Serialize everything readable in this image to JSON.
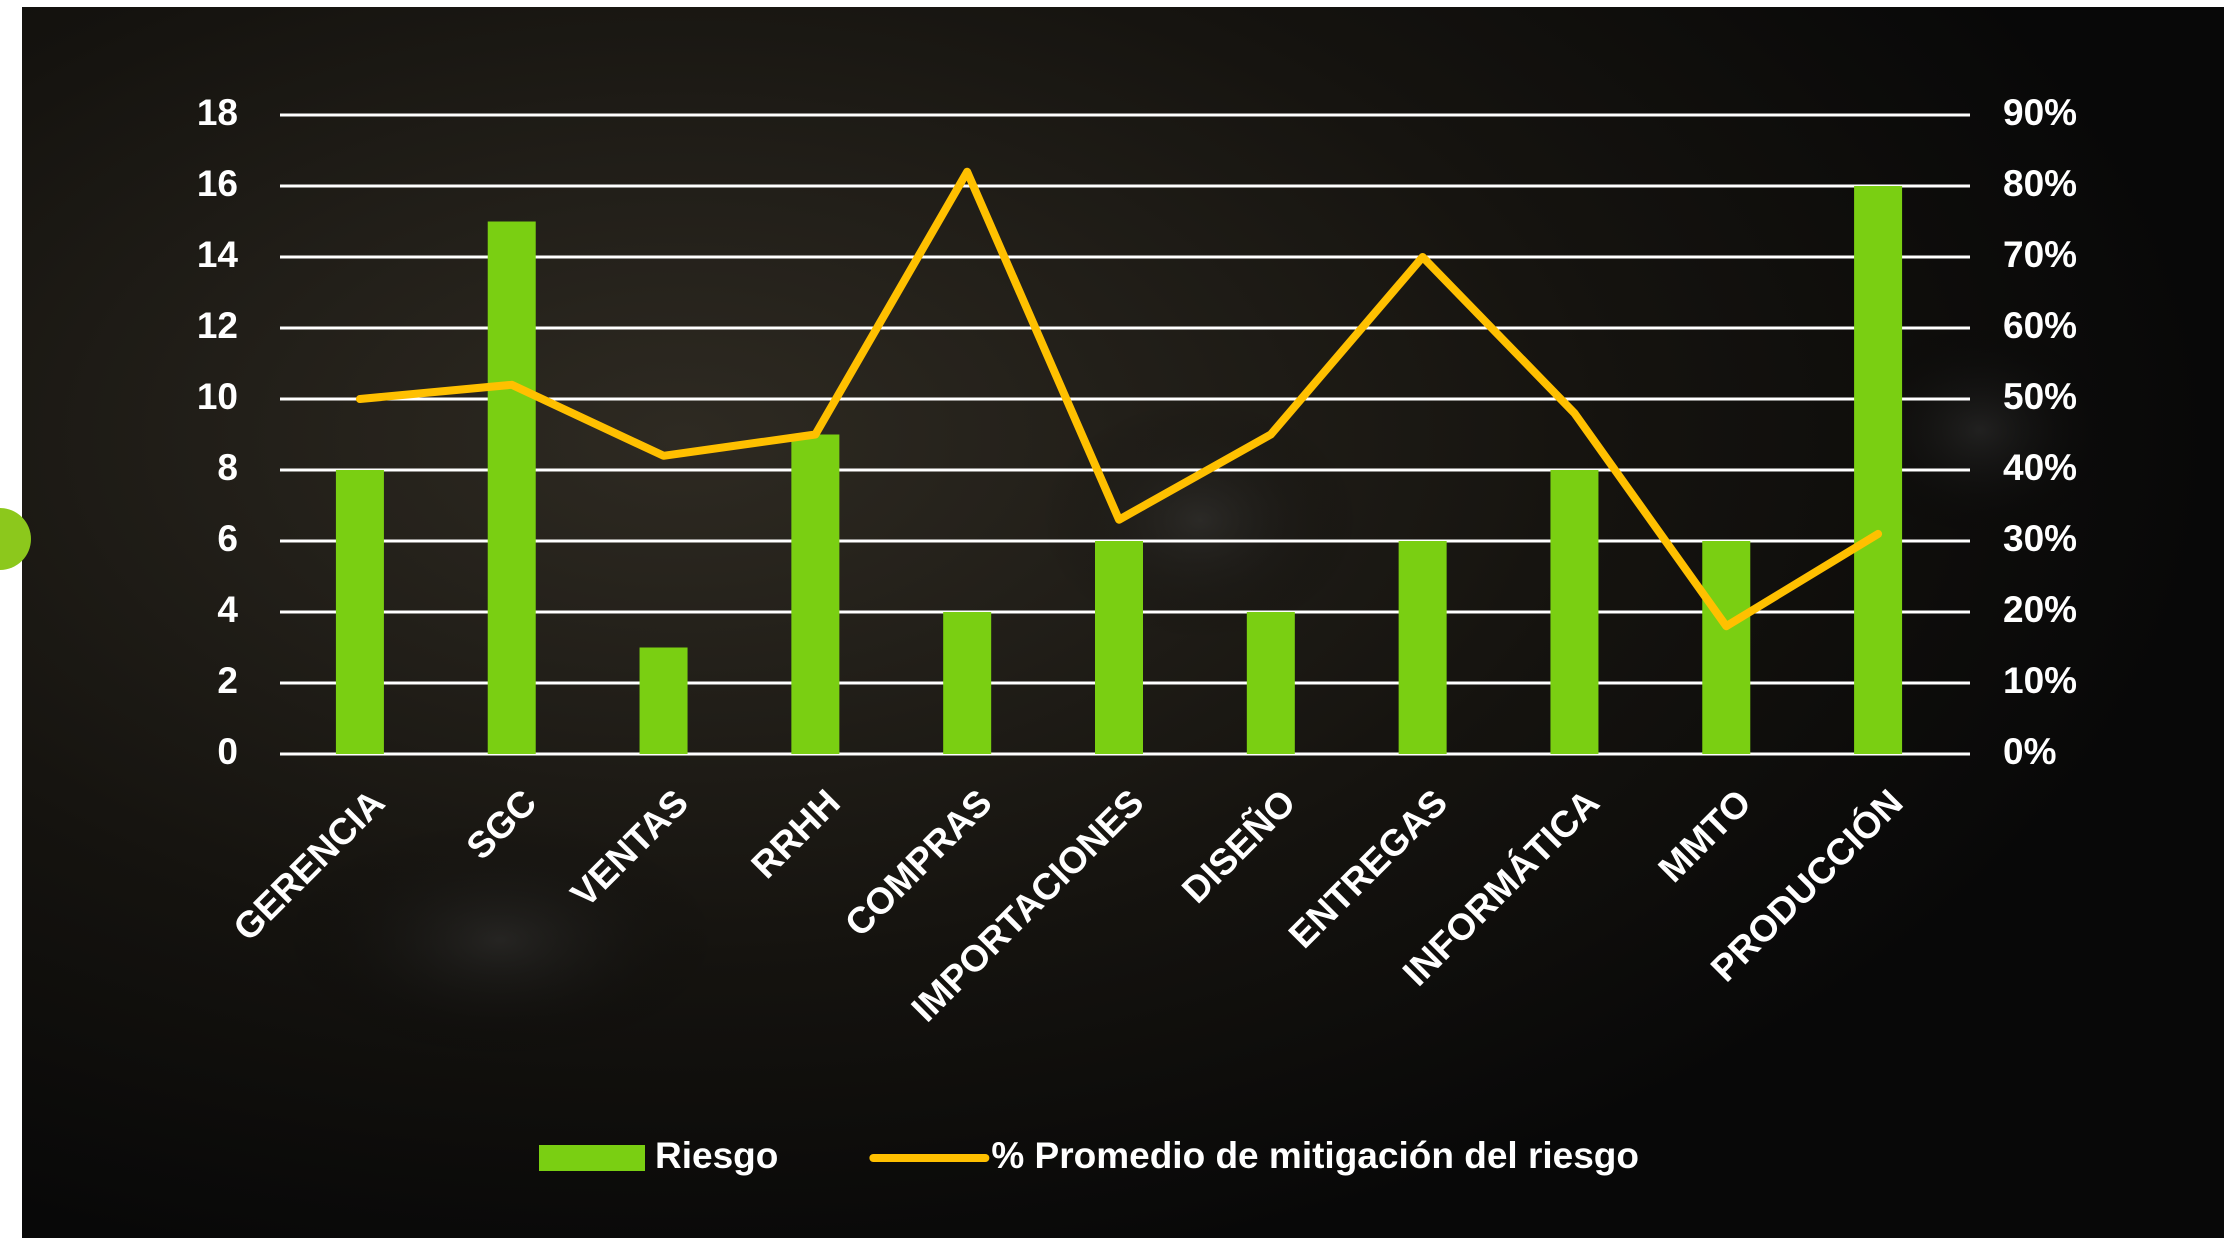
{
  "chart_data": {
    "type": "bar",
    "categories": [
      "GERENCIA",
      "SGC",
      "VENTAS",
      "RRHH",
      "COMPRAS",
      "IMPORTACIONES",
      "DISEÑO",
      "ENTREGAS",
      "INFORMÁTICA",
      "MMTO",
      "PRODUCCIÓN"
    ],
    "series": [
      {
        "name": "Riesgo",
        "type": "bar",
        "color": "#7acf12",
        "values": [
          8,
          15,
          3,
          9,
          4,
          6,
          4,
          6,
          8,
          6,
          16
        ]
      },
      {
        "name": "% Promedio de mitigación del riesgo",
        "type": "line",
        "axis": "y2",
        "color": "#ffc000",
        "values": [
          50,
          52,
          42,
          45,
          82,
          33,
          45,
          70,
          48,
          18,
          31
        ]
      }
    ],
    "ylim": [
      0,
      18
    ],
    "yticks": [
      0,
      2,
      4,
      6,
      8,
      10,
      12,
      14,
      16,
      18
    ],
    "y2lim": [
      0,
      90
    ],
    "y2ticks": [
      {
        "value": 0,
        "label": "0%"
      },
      {
        "value": 10,
        "label": "10%"
      },
      {
        "value": 20,
        "label": "20%"
      },
      {
        "value": 30,
        "label": "30%"
      },
      {
        "value": 40,
        "label": "40%"
      },
      {
        "value": 50,
        "label": "50%"
      },
      {
        "value": 60,
        "label": "60%"
      },
      {
        "value": 70,
        "label": "70%"
      },
      {
        "value": 80,
        "label": "80%"
      },
      {
        "value": 90,
        "label": "90%"
      }
    ],
    "grid": true,
    "legend": "bottom"
  }
}
